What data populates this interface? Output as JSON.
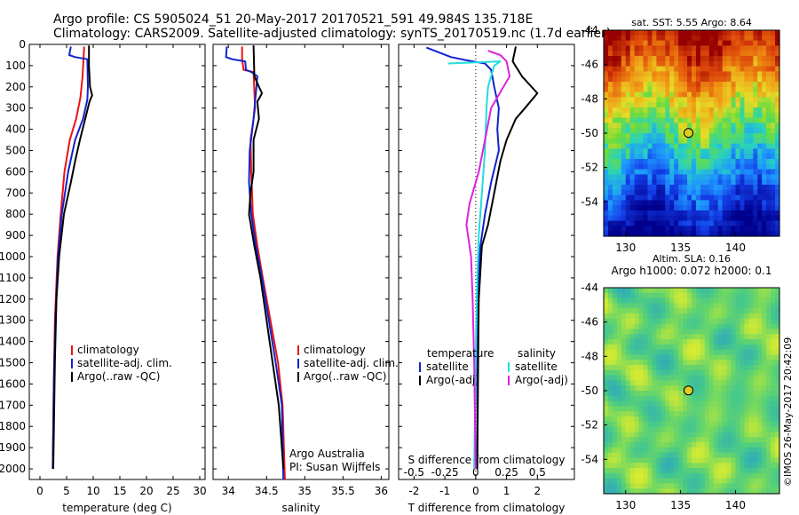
{
  "header": {
    "line1": "Argo profile: CS 5905024_51 20-May-2017 20170521_591 49.984S 135.718E",
    "line2": "Climatology: CARS2009. Satellite-adjusted climatology: synTS_20170519.nc (1.7d earlier)"
  },
  "colors": {
    "climatology": "#ee1111",
    "satellite": "#1122cc",
    "argo": "#000000",
    "satellite_s": "#22dddd",
    "argo_s": "#dd22dd"
  },
  "chart_data": [
    {
      "type": "line",
      "id": "temperature",
      "xlabel": "temperature (deg C)",
      "ylabel": "",
      "xlim": [
        -2,
        31
      ],
      "ylim": [
        2050,
        0
      ],
      "xticks": [
        0,
        5,
        10,
        15,
        20,
        25,
        30
      ],
      "yticks": [
        0,
        100,
        200,
        300,
        400,
        500,
        600,
        700,
        800,
        900,
        1000,
        1100,
        1200,
        1300,
        1400,
        1500,
        1600,
        1700,
        1800,
        1900,
        2000
      ],
      "legend": [
        "climatology",
        "satellite-adj. clim.",
        "Argo(..raw -QC)"
      ],
      "series": [
        {
          "name": "climatology",
          "color": "#ee1111",
          "points": [
            [
              8.3,
              10
            ],
            [
              8.2,
              60
            ],
            [
              8.0,
              150
            ],
            [
              7.6,
              250
            ],
            [
              6.8,
              350
            ],
            [
              5.6,
              450
            ],
            [
              4.6,
              600
            ],
            [
              3.9,
              800
            ],
            [
              3.3,
              1000
            ],
            [
              2.8,
              1300
            ],
            [
              2.6,
              1600
            ],
            [
              2.4,
              2000
            ]
          ]
        },
        {
          "name": "satellite-adj. clim.",
          "color": "#1122cc",
          "points": [
            [
              5.8,
              10
            ],
            [
              5.5,
              50
            ],
            [
              6.6,
              60
            ],
            [
              8.9,
              70
            ],
            [
              9.0,
              200
            ],
            [
              8.9,
              260
            ],
            [
              8.1,
              350
            ],
            [
              6.6,
              450
            ],
            [
              5.3,
              600
            ],
            [
              4.1,
              800
            ],
            [
              3.4,
              1000
            ],
            [
              2.9,
              1300
            ],
            [
              2.6,
              1600
            ],
            [
              2.4,
              2000
            ]
          ]
        },
        {
          "name": "Argo(..raw -QC)",
          "color": "#000000",
          "points": [
            [
              9.2,
              5
            ],
            [
              9.2,
              100
            ],
            [
              9.4,
              200
            ],
            [
              9.8,
              240
            ],
            [
              9.3,
              270
            ],
            [
              8.5,
              350
            ],
            [
              7.5,
              450
            ],
            [
              6.6,
              550
            ],
            [
              5.8,
              650
            ],
            [
              4.5,
              800
            ],
            [
              3.6,
              1000
            ],
            [
              3.1,
              1200
            ],
            [
              2.8,
              1500
            ],
            [
              2.5,
              2000
            ]
          ]
        }
      ]
    },
    {
      "type": "line",
      "id": "salinity",
      "xlabel": "salinity",
      "ylabel": "",
      "xlim": [
        33.8,
        36.1
      ],
      "ylim": [
        2050,
        0
      ],
      "xticks": [
        34,
        34.5,
        35,
        35.5,
        36
      ],
      "legend": [
        "climatology",
        "satellite-adj. clim.",
        "Argo(..raw -QC)"
      ],
      "annotations": [
        "Argo Australia",
        "PI: Susan Wijffels"
      ],
      "series": [
        {
          "name": "climatology",
          "color": "#ee1111",
          "points": [
            [
              34.18,
              10
            ],
            [
              34.18,
              70
            ],
            [
              34.2,
              120
            ],
            [
              34.33,
              130
            ],
            [
              34.35,
              300
            ],
            [
              34.29,
              450
            ],
            [
              34.3,
              600
            ],
            [
              34.32,
              800
            ],
            [
              34.38,
              950
            ],
            [
              34.45,
              1100
            ],
            [
              34.55,
              1300
            ],
            [
              34.65,
              1500
            ],
            [
              34.71,
              1700
            ],
            [
              34.74,
              2050
            ]
          ]
        },
        {
          "name": "satellite-adj. clim.",
          "color": "#1122cc",
          "points": [
            [
              33.98,
              10
            ],
            [
              33.97,
              60
            ],
            [
              34.05,
              70
            ],
            [
              34.22,
              80
            ],
            [
              34.23,
              120
            ],
            [
              34.3,
              130
            ],
            [
              34.38,
              150
            ],
            [
              34.33,
              350
            ],
            [
              34.28,
              500
            ],
            [
              34.27,
              650
            ],
            [
              34.3,
              800
            ],
            [
              34.36,
              950
            ],
            [
              34.44,
              1100
            ],
            [
              34.53,
              1300
            ],
            [
              34.62,
              1500
            ],
            [
              34.7,
              1700
            ],
            [
              34.72,
              2050
            ]
          ]
        },
        {
          "name": "Argo(..raw -QC)",
          "color": "#000000",
          "points": [
            [
              34.33,
              5
            ],
            [
              34.34,
              150
            ],
            [
              34.4,
              200
            ],
            [
              34.44,
              230
            ],
            [
              34.38,
              270
            ],
            [
              34.4,
              350
            ],
            [
              34.33,
              450
            ],
            [
              34.33,
              600
            ],
            [
              34.29,
              700
            ],
            [
              34.27,
              800
            ],
            [
              34.34,
              950
            ],
            [
              34.42,
              1100
            ],
            [
              34.5,
              1300
            ],
            [
              34.58,
              1500
            ],
            [
              34.66,
              1700
            ],
            [
              34.7,
              1900
            ],
            [
              34.72,
              2000
            ]
          ]
        }
      ]
    },
    {
      "type": "line",
      "id": "difference",
      "xlabel": "T difference from climatology",
      "xlabel2": "S difference from climatology",
      "xlim": [
        -2.5,
        3.2
      ],
      "ylim": [
        2050,
        0
      ],
      "xticks": [
        -2,
        -1,
        0,
        1,
        2
      ],
      "xticks2": [
        -0.5,
        -0.25,
        0,
        0.25,
        0.5
      ],
      "legend_titles": [
        "temperature",
        "salinity"
      ],
      "legend": [
        "satellite",
        "Argo(-adj)",
        "satellite",
        "Argo(-adj)"
      ],
      "series": [
        {
          "name": "satellite",
          "color": "#1122cc",
          "points": [
            [
              -1.6,
              15
            ],
            [
              -0.8,
              60
            ],
            [
              -0.3,
              75
            ],
            [
              0.3,
              90
            ],
            [
              0.5,
              120
            ],
            [
              0.6,
              200
            ],
            [
              0.75,
              300
            ],
            [
              0.7,
              400
            ],
            [
              0.75,
              500
            ],
            [
              0.5,
              650
            ],
            [
              0.3,
              800
            ],
            [
              0.15,
              950
            ],
            [
              0.05,
              1200
            ],
            [
              0.05,
              1500
            ],
            [
              0.05,
              2000
            ]
          ]
        },
        {
          "name": "Argo(-adj)",
          "color": "#000000",
          "points": [
            [
              1.3,
              10
            ],
            [
              1.2,
              80
            ],
            [
              1.5,
              150
            ],
            [
              2.0,
              230
            ],
            [
              1.6,
              300
            ],
            [
              1.3,
              350
            ],
            [
              1.0,
              450
            ],
            [
              0.8,
              550
            ],
            [
              0.6,
              700
            ],
            [
              0.4,
              850
            ],
            [
              0.2,
              950
            ],
            [
              0.1,
              1200
            ],
            [
              0.08,
              1500
            ],
            [
              0.05,
              2000
            ]
          ]
        },
        {
          "name": "satellite",
          "color": "#22dddd",
          "points": [
            [
              -0.9,
              90
            ],
            [
              0.8,
              80
            ],
            [
              0.6,
              100
            ],
            [
              0.4,
              200
            ],
            [
              0.35,
              300
            ],
            [
              0.3,
              500
            ],
            [
              0.2,
              700
            ],
            [
              0.1,
              900
            ],
            [
              0.05,
              1100
            ],
            [
              0.0,
              1500
            ],
            [
              -0.05,
              2000
            ]
          ]
        },
        {
          "name": "Argo(-adj)",
          "color": "#dd22dd",
          "points": [
            [
              0.4,
              30
            ],
            [
              0.8,
              50
            ],
            [
              1.0,
              80
            ],
            [
              1.1,
              150
            ],
            [
              0.9,
              200
            ],
            [
              0.5,
              300
            ],
            [
              0.3,
              450
            ],
            [
              0.1,
              600
            ],
            [
              -0.2,
              750
            ],
            [
              -0.3,
              850
            ],
            [
              -0.15,
              1000
            ],
            [
              -0.1,
              1200
            ],
            [
              -0.05,
              1500
            ],
            [
              0.0,
              2000
            ]
          ]
        }
      ]
    },
    {
      "type": "heatmap",
      "id": "sst-map",
      "title": "sat. SST: 5.55 Argo: 8.64",
      "xlim": [
        128,
        144
      ],
      "ylim": [
        -56,
        -44
      ],
      "xticks": [
        130,
        135,
        140
      ],
      "yticks": [
        -44,
        -46,
        -48,
        -50,
        -52,
        -54
      ],
      "marker": [
        135.718,
        -49.984
      ]
    },
    {
      "type": "heatmap",
      "id": "sla-map",
      "title": "Altim. SLA: 0.16",
      "subtitle": "Argo h1000: 0.072 h2000: 0.1",
      "xlim": [
        128,
        144
      ],
      "ylim": [
        -56,
        -44
      ],
      "xticks": [
        130,
        135,
        140
      ],
      "yticks": [
        -44,
        -46,
        -48,
        -50,
        -52,
        -54
      ],
      "marker": [
        135.718,
        -49.984
      ]
    }
  ],
  "credit": "©IMOS 26-May-2017 20:42:09"
}
